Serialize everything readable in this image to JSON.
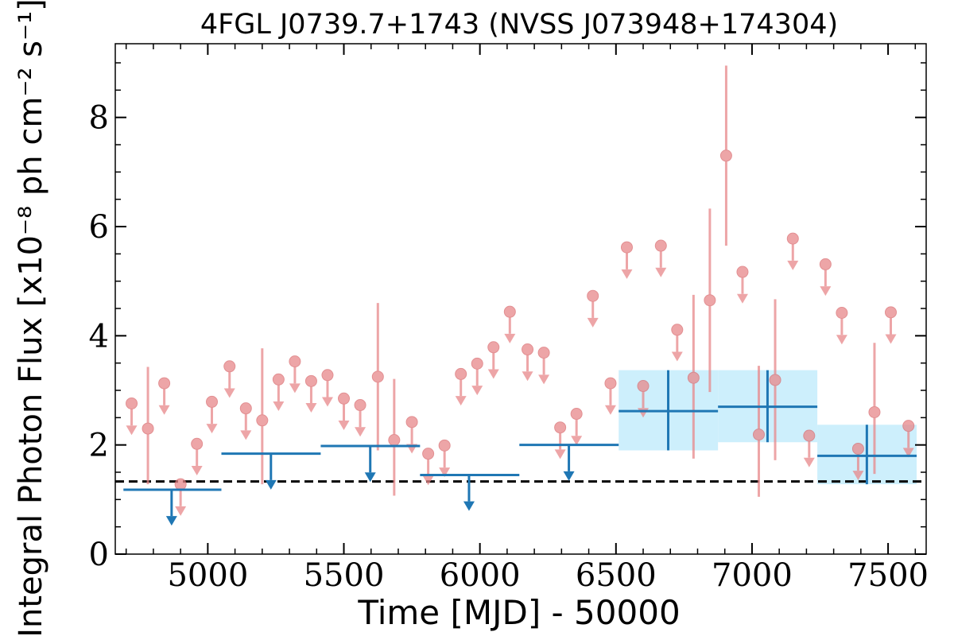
{
  "chart_data": {
    "type": "scatter",
    "title": "4FGL J0739.7+1743 (NVSS J073948+174304)",
    "xlabel": "Time [MJD] - 50000",
    "ylabel": "Integral Photon Flux [x10⁻⁸ ph cm⁻² s⁻¹]",
    "xlim": [
      4660,
      7640
    ],
    "ylim": [
      0,
      9.35
    ],
    "x_ticks": [
      5000,
      5500,
      6000,
      6500,
      7000,
      7500
    ],
    "y_ticks": [
      0,
      2,
      4,
      6,
      8
    ],
    "x_tick_labels": [
      "5000",
      "5500",
      "6000",
      "6500",
      "7000",
      "7500"
    ],
    "y_tick_labels": [
      "0",
      "2",
      "4",
      "6",
      "8"
    ],
    "grid": false,
    "reference_line": {
      "y": 1.33,
      "style": "dashed",
      "color": "#000000"
    },
    "series": [
      {
        "kind": "short-bin",
        "color": "#e8888a",
        "points": [
          {
            "x": 4720,
            "y": 2.76,
            "ul": true
          },
          {
            "x": 4780,
            "y": 2.3,
            "ylo": 1.28,
            "yhi": 3.43
          },
          {
            "x": 4840,
            "y": 3.13,
            "ul": true
          },
          {
            "x": 4900,
            "y": 1.28,
            "ul": true
          },
          {
            "x": 4960,
            "y": 2.02,
            "ul": true
          },
          {
            "x": 5015,
            "y": 2.79,
            "ul": true
          },
          {
            "x": 5080,
            "y": 3.44,
            "ul": true
          },
          {
            "x": 5140,
            "y": 2.67,
            "ul": true
          },
          {
            "x": 5200,
            "y": 2.45,
            "ylo": 1.28,
            "yhi": 3.77
          },
          {
            "x": 5260,
            "y": 3.2,
            "ul": true
          },
          {
            "x": 5320,
            "y": 3.53,
            "ul": true
          },
          {
            "x": 5380,
            "y": 3.17,
            "ul": true
          },
          {
            "x": 5440,
            "y": 3.28,
            "ul": true
          },
          {
            "x": 5500,
            "y": 2.85,
            "ul": true
          },
          {
            "x": 5560,
            "y": 2.73,
            "ul": true
          },
          {
            "x": 5625,
            "y": 3.25,
            "ylo": 1.9,
            "yhi": 4.6
          },
          {
            "x": 5685,
            "y": 2.09,
            "ylo": 1.07,
            "yhi": 3.21
          },
          {
            "x": 5750,
            "y": 2.42,
            "ul": true
          },
          {
            "x": 5810,
            "y": 1.84,
            "ul": true
          },
          {
            "x": 5870,
            "y": 1.99,
            "ul": true
          },
          {
            "x": 5930,
            "y": 3.3,
            "ul": true
          },
          {
            "x": 5990,
            "y": 3.49,
            "ul": true
          },
          {
            "x": 6050,
            "y": 3.79,
            "ul": true
          },
          {
            "x": 6110,
            "y": 4.44,
            "ul": true
          },
          {
            "x": 6175,
            "y": 3.75,
            "ul": true
          },
          {
            "x": 6235,
            "y": 3.69,
            "ul": true
          },
          {
            "x": 6295,
            "y": 2.32,
            "ul": true
          },
          {
            "x": 6355,
            "y": 2.57,
            "ul": true
          },
          {
            "x": 6415,
            "y": 4.73,
            "ul": true
          },
          {
            "x": 6480,
            "y": 3.13,
            "ul": true
          },
          {
            "x": 6540,
            "y": 5.62,
            "ul": true
          },
          {
            "x": 6600,
            "y": 3.08,
            "ul": true
          },
          {
            "x": 6665,
            "y": 5.65,
            "ul": true
          },
          {
            "x": 6725,
            "y": 4.11,
            "ul": true
          },
          {
            "x": 6785,
            "y": 3.23,
            "ylo": 1.75,
            "yhi": 4.75
          },
          {
            "x": 6845,
            "y": 4.65,
            "ylo": 2.97,
            "yhi": 6.33
          },
          {
            "x": 6905,
            "y": 7.3,
            "ylo": 5.65,
            "yhi": 8.95
          },
          {
            "x": 6965,
            "y": 5.17,
            "ul": true
          },
          {
            "x": 7025,
            "y": 2.19,
            "ylo": 1.05,
            "yhi": 3.45
          },
          {
            "x": 7085,
            "y": 3.19,
            "ylo": 1.72,
            "yhi": 4.67
          },
          {
            "x": 7150,
            "y": 5.78,
            "ul": true
          },
          {
            "x": 7210,
            "y": 2.17,
            "ul": true
          },
          {
            "x": 7270,
            "y": 5.31,
            "ul": true
          },
          {
            "x": 7330,
            "y": 4.42,
            "ul": true
          },
          {
            "x": 7390,
            "y": 1.93,
            "ul": true
          },
          {
            "x": 7450,
            "y": 2.6,
            "ylo": 1.47,
            "yhi": 3.87
          },
          {
            "x": 7510,
            "y": 4.43,
            "ul": true
          },
          {
            "x": 7575,
            "y": 2.35,
            "ul": true
          }
        ]
      },
      {
        "kind": "long-bin",
        "color": "#1f77b4",
        "band_color": "#cdeffc",
        "points": [
          {
            "x": 4867,
            "xlo": 4690,
            "xhi": 5050,
            "y": 1.18,
            "ul": true
          },
          {
            "x": 5232,
            "xlo": 5050,
            "xhi": 5415,
            "y": 1.84,
            "ul": true
          },
          {
            "x": 5597,
            "xlo": 5415,
            "xhi": 5780,
            "y": 1.98,
            "ul": true
          },
          {
            "x": 5960,
            "xlo": 5780,
            "xhi": 6145,
            "y": 1.45,
            "ul": true
          },
          {
            "x": 6327,
            "xlo": 6145,
            "xhi": 6510,
            "y": 2.0,
            "ul": true
          },
          {
            "x": 6692,
            "xlo": 6510,
            "xhi": 6875,
            "y": 2.62,
            "ylo": 1.9,
            "yhi": 3.37
          },
          {
            "x": 7057,
            "xlo": 6875,
            "xhi": 7240,
            "y": 2.7,
            "ylo": 2.05,
            "yhi": 3.37
          },
          {
            "x": 7422,
            "xlo": 7240,
            "xhi": 7605,
            "y": 1.8,
            "ylo": 1.28,
            "yhi": 2.37
          }
        ]
      }
    ]
  }
}
